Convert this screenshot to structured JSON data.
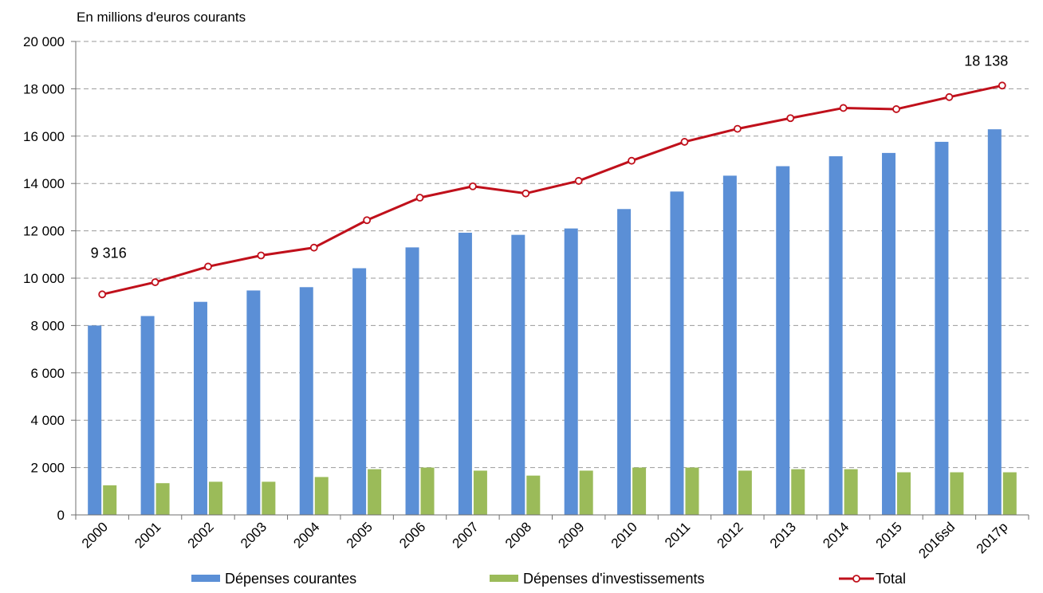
{
  "chart_data": {
    "type": "bar",
    "unit_label": "En millions d'euros courants",
    "categories": [
      "2000",
      "2001",
      "2002",
      "2003",
      "2004",
      "2005",
      "2006",
      "2007",
      "2008",
      "2009",
      "2010",
      "2011",
      "2012",
      "2013",
      "2014",
      "2015",
      "2016sd",
      "2017p"
    ],
    "series": [
      {
        "name": "Dépenses courantes",
        "type": "bar",
        "color": "#5B8FD6",
        "values": [
          8000,
          8400,
          9000,
          9480,
          9620,
          10420,
          11300,
          11920,
          11830,
          12100,
          12920,
          13660,
          14330,
          14730,
          15150,
          15290,
          15760,
          16290
        ]
      },
      {
        "name": "Dépenses d'investissements",
        "type": "bar",
        "color": "#9BBB59",
        "values": [
          1250,
          1340,
          1400,
          1400,
          1600,
          1930,
          2000,
          1870,
          1660,
          1870,
          2000,
          2000,
          1870,
          1930,
          1930,
          1800,
          1800,
          1800
        ]
      },
      {
        "name": "Total",
        "type": "line",
        "color": "#C0101B",
        "values": [
          9316,
          9830,
          10490,
          10960,
          11290,
          12450,
          13400,
          13880,
          13580,
          14110,
          14960,
          15760,
          16310,
          16760,
          17190,
          17140,
          17650,
          18138
        ]
      }
    ],
    "annotations": [
      {
        "category": "2000",
        "text": "9 316"
      },
      {
        "category": "2017p",
        "text": "18 138"
      }
    ],
    "yticks": [
      "0",
      "2 000",
      "4 000",
      "6 000",
      "8 000",
      "10 000",
      "12 000",
      "14 000",
      "16 000",
      "18 000",
      "20 000"
    ],
    "ylim": [
      0,
      20000
    ],
    "grid": true,
    "legend_position": "bottom"
  }
}
